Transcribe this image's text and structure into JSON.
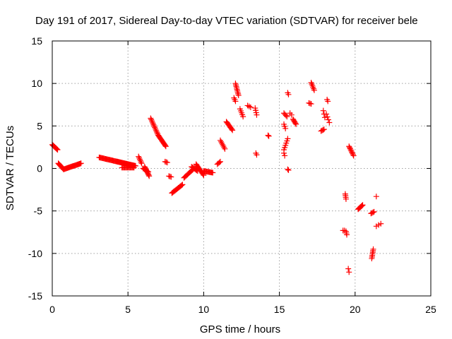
{
  "chart_data": {
    "type": "scatter",
    "title": "Day 191 of 2017, Sidereal Day-to-day VTEC variation (SDTVAR) for receiver bele",
    "xlabel": "GPS time / hours",
    "ylabel": "SDTVAR / TECUs",
    "xlim": [
      0,
      25
    ],
    "ylim": [
      -15,
      15
    ],
    "xticks": [
      "0",
      "5",
      "10",
      "15",
      "20",
      "25"
    ],
    "yticks": [
      "15",
      "10",
      "5",
      "0",
      "-5",
      "-10",
      "-15"
    ],
    "grid": true,
    "marker": "plus",
    "series_color": "#ff0000",
    "segments": [
      {
        "x0": 0.0,
        "y0": 2.8,
        "x1": 0.35,
        "y1": 2.2,
        "n": 10
      },
      {
        "x0": 0.4,
        "y0": 0.6,
        "x1": 0.75,
        "y1": -0.1,
        "n": 10
      },
      {
        "x0": 0.75,
        "y0": -0.1,
        "x1": 1.9,
        "y1": 0.6,
        "n": 24
      },
      {
        "x0": 3.1,
        "y0": 1.3,
        "x1": 4.3,
        "y1": 0.8,
        "n": 24
      },
      {
        "x0": 4.3,
        "y0": 0.8,
        "x1": 5.5,
        "y1": 0.3,
        "n": 30
      },
      {
        "x0": 4.6,
        "y0": 0.1,
        "x1": 5.4,
        "y1": 0.1,
        "n": 14
      },
      {
        "x0": 5.7,
        "y0": 1.4,
        "x1": 5.9,
        "y1": 0.6,
        "n": 6
      },
      {
        "x0": 6.1,
        "y0": 0.2,
        "x1": 6.4,
        "y1": -0.9,
        "n": 10
      },
      {
        "x0": 6.0,
        "y0": 0.0,
        "x1": 6.35,
        "y1": -0.4,
        "n": 6
      },
      {
        "x0": 6.5,
        "y0": 5.9,
        "x1": 7.0,
        "y1": 3.9,
        "n": 14
      },
      {
        "x0": 7.0,
        "y0": 3.9,
        "x1": 7.5,
        "y1": 2.6,
        "n": 14
      },
      {
        "x0": 7.45,
        "y0": 0.8,
        "x1": 7.6,
        "y1": 0.7,
        "n": 3
      },
      {
        "x0": 7.7,
        "y0": -0.9,
        "x1": 7.85,
        "y1": -1.0,
        "n": 3
      },
      {
        "x0": 7.9,
        "y0": -2.9,
        "x1": 8.6,
        "y1": -1.9,
        "n": 14
      },
      {
        "x0": 8.7,
        "y0": -1.1,
        "x1": 9.3,
        "y1": -0.1,
        "n": 12
      },
      {
        "x0": 9.2,
        "y0": 0.2,
        "x1": 9.6,
        "y1": -0.3,
        "n": 8
      },
      {
        "x0": 9.5,
        "y0": 0.5,
        "x1": 10.0,
        "y1": -0.8,
        "n": 12
      },
      {
        "x0": 10.0,
        "y0": -0.3,
        "x1": 10.6,
        "y1": -0.5,
        "n": 12
      },
      {
        "x0": 10.9,
        "y0": 0.5,
        "x1": 11.1,
        "y1": 0.8,
        "n": 4
      },
      {
        "x0": 11.1,
        "y0": 3.3,
        "x1": 11.4,
        "y1": 2.3,
        "n": 7
      },
      {
        "x0": 11.5,
        "y0": 5.5,
        "x1": 11.9,
        "y1": 4.5,
        "n": 10
      },
      {
        "x0": 12.0,
        "y0": 8.3,
        "x1": 12.1,
        "y1": 7.9,
        "n": 3
      },
      {
        "x0": 12.1,
        "y0": 10.0,
        "x1": 12.3,
        "y1": 8.6,
        "n": 9
      },
      {
        "x0": 12.4,
        "y0": 7.0,
        "x1": 12.6,
        "y1": 6.1,
        "n": 5
      },
      {
        "x0": 12.9,
        "y0": 7.4,
        "x1": 13.1,
        "y1": 7.2,
        "n": 3
      },
      {
        "x0": 13.4,
        "y0": 7.1,
        "x1": 13.5,
        "y1": 6.3,
        "n": 4
      },
      {
        "x0": 13.45,
        "y0": 1.8,
        "x1": 13.5,
        "y1": 1.6,
        "n": 2
      },
      {
        "x0": 14.25,
        "y0": 3.9,
        "x1": 14.3,
        "y1": 3.8,
        "n": 2
      },
      {
        "x0": 15.3,
        "y0": 6.5,
        "x1": 15.5,
        "y1": 6.1,
        "n": 4
      },
      {
        "x0": 15.3,
        "y0": 5.2,
        "x1": 15.4,
        "y1": 4.7,
        "n": 3
      },
      {
        "x0": 15.3,
        "y0": 2.2,
        "x1": 15.55,
        "y1": 3.5,
        "n": 6
      },
      {
        "x0": 15.3,
        "y0": 1.8,
        "x1": 15.35,
        "y1": 1.5,
        "n": 2
      },
      {
        "x0": 15.55,
        "y0": 8.9,
        "x1": 15.6,
        "y1": 8.7,
        "n": 2
      },
      {
        "x0": 15.55,
        "y0": -0.1,
        "x1": 15.6,
        "y1": -0.2,
        "n": 2
      },
      {
        "x0": 15.7,
        "y0": 6.5,
        "x1": 15.8,
        "y1": 6.3,
        "n": 2
      },
      {
        "x0": 15.9,
        "y0": 5.8,
        "x1": 16.1,
        "y1": 5.2,
        "n": 6
      },
      {
        "x0": 16.95,
        "y0": 7.7,
        "x1": 17.1,
        "y1": 7.6,
        "n": 3
      },
      {
        "x0": 17.1,
        "y0": 10.1,
        "x1": 17.3,
        "y1": 9.2,
        "n": 6
      },
      {
        "x0": 17.75,
        "y0": 4.4,
        "x1": 17.95,
        "y1": 4.6,
        "n": 4
      },
      {
        "x0": 17.9,
        "y0": 6.8,
        "x1": 18.0,
        "y1": 6.0,
        "n": 3
      },
      {
        "x0": 18.15,
        "y0": 8.1,
        "x1": 18.2,
        "y1": 7.9,
        "n": 2
      },
      {
        "x0": 18.1,
        "y0": 6.4,
        "x1": 18.3,
        "y1": 5.4,
        "n": 4
      },
      {
        "x0": 19.2,
        "y0": -7.3,
        "x1": 19.3,
        "y1": -7.3,
        "n": 2
      },
      {
        "x0": 19.35,
        "y0": -3.0,
        "x1": 19.4,
        "y1": -3.6,
        "n": 4
      },
      {
        "x0": 19.4,
        "y0": -7.4,
        "x1": 19.45,
        "y1": -7.8,
        "n": 3
      },
      {
        "x0": 19.55,
        "y0": -11.8,
        "x1": 19.6,
        "y1": -12.2,
        "n": 2
      },
      {
        "x0": 19.6,
        "y0": 2.6,
        "x1": 19.9,
        "y1": 1.5,
        "n": 9
      },
      {
        "x0": 20.2,
        "y0": -4.8,
        "x1": 20.5,
        "y1": -4.3,
        "n": 8
      },
      {
        "x0": 21.05,
        "y0": -5.3,
        "x1": 21.25,
        "y1": -5.1,
        "n": 4
      },
      {
        "x0": 21.1,
        "y0": -10.6,
        "x1": 21.2,
        "y1": -9.5,
        "n": 7
      },
      {
        "x0": 21.4,
        "y0": -3.3,
        "x1": 21.45,
        "y1": -3.3,
        "n": 1
      },
      {
        "x0": 21.4,
        "y0": -6.8,
        "x1": 21.7,
        "y1": -6.5,
        "n": 3
      }
    ]
  }
}
